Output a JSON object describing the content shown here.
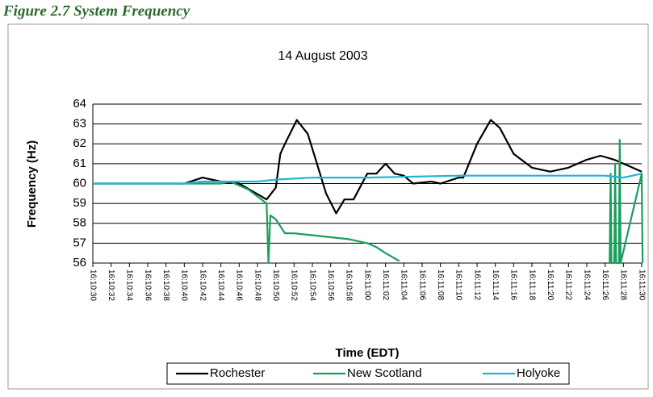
{
  "figure_caption": "Figure 2.7 System Frequency",
  "chart_data": {
    "type": "line",
    "title": "14 August 2003",
    "x_label": "Time (EDT)",
    "y_label": "Frequency (Hz)",
    "xlim": [
      58230,
      58290
    ],
    "xticks": [
      {
        "value": 58230,
        "label": "16:10:30"
      },
      {
        "value": 58232,
        "label": "16:10:32"
      },
      {
        "value": 58234,
        "label": "16:10:34"
      },
      {
        "value": 58236,
        "label": "16:10:36"
      },
      {
        "value": 58238,
        "label": "16:10:38"
      },
      {
        "value": 58240,
        "label": "16:10:40"
      },
      {
        "value": 58242,
        "label": "16:10:42"
      },
      {
        "value": 58244,
        "label": "16:10:44"
      },
      {
        "value": 58246,
        "label": "16:10:46"
      },
      {
        "value": 58248,
        "label": "16:10:48"
      },
      {
        "value": 58250,
        "label": "16:10:50"
      },
      {
        "value": 58252,
        "label": "16:10:52"
      },
      {
        "value": 58254,
        "label": "16:10:54"
      },
      {
        "value": 58256,
        "label": "16:10:56"
      },
      {
        "value": 58258,
        "label": "16:10:58"
      },
      {
        "value": 58260,
        "label": "16:11:00"
      },
      {
        "value": 58262,
        "label": "16:11:02"
      },
      {
        "value": 58264,
        "label": "16:11:04"
      },
      {
        "value": 58266,
        "label": "16:11:06"
      },
      {
        "value": 58268,
        "label": "16:11:08"
      },
      {
        "value": 58270,
        "label": "16:11:10"
      },
      {
        "value": 58272,
        "label": "16:11:12"
      },
      {
        "value": 58274,
        "label": "16:11:14"
      },
      {
        "value": 58276,
        "label": "16:11:16"
      },
      {
        "value": 58278,
        "label": "16:11:18"
      },
      {
        "value": 58280,
        "label": "16:11:20"
      },
      {
        "value": 58282,
        "label": "16:11:22"
      },
      {
        "value": 58284,
        "label": "16:11:24"
      },
      {
        "value": 58286,
        "label": "16:11:26"
      },
      {
        "value": 58288,
        "label": "16:11:28"
      },
      {
        "value": 58290,
        "label": "16:11:30"
      }
    ],
    "ylim": [
      56,
      64
    ],
    "yticks": [
      56,
      57,
      58,
      59,
      60,
      61,
      62,
      63,
      64
    ],
    "grid": true,
    "legend": "bottom",
    "series": [
      {
        "name": "Rochester",
        "color": "#000000",
        "x": [
          58230,
          58240,
          58242,
          58244,
          58246,
          58247.5,
          58249,
          58250,
          58250.5,
          58251,
          58252.3,
          58253.5,
          58254.5,
          58255.5,
          58256.6,
          58257.5,
          58258.5,
          58260,
          58261,
          58262,
          58263,
          58264,
          58265,
          58267,
          58268,
          58270,
          58270.5,
          58272,
          58273.5,
          58274.5,
          58276,
          58278,
          58280,
          58282,
          58284,
          58285.5,
          58287,
          58288.5,
          58290
        ],
        "values": [
          60,
          60,
          60.3,
          60.1,
          60,
          59.6,
          59.2,
          59.8,
          61.5,
          62,
          63.2,
          62.5,
          61,
          59.5,
          58.5,
          59.2,
          59.2,
          60.5,
          60.5,
          61,
          60.5,
          60.4,
          60,
          60.1,
          60,
          60.3,
          60.3,
          62,
          63.2,
          62.8,
          61.5,
          60.8,
          60.6,
          60.8,
          61.2,
          61.4,
          61.2,
          60.9,
          60.6
        ]
      },
      {
        "name": "New Scotland",
        "color": "#1a9e5c",
        "x": [
          58230,
          58244,
          58245,
          58247,
          58249,
          58249.2,
          58249.4,
          58250,
          58251,
          58252,
          58254,
          58256,
          58258,
          58260,
          58261,
          58262,
          58263.5,
          58280,
          58286.5,
          58286.6,
          58286.7,
          58287,
          58287.1,
          58287.2,
          58287.5,
          58287.6,
          58287.7,
          58290,
          58290.1
        ],
        "values": [
          60,
          60,
          60.1,
          59.7,
          59,
          56,
          58.4,
          58.2,
          57.5,
          57.5,
          57.4,
          57.3,
          57.2,
          57,
          56.8,
          56.5,
          56.1,
          null,
          56,
          60.5,
          56,
          56,
          61,
          56,
          56,
          62.2,
          56,
          60.5,
          56
        ]
      },
      {
        "name": "Holyoke",
        "color": "#1fb8d0",
        "x": [
          58230,
          58240,
          58242,
          58248,
          58250,
          58254,
          58260,
          58270,
          58286,
          58288,
          58289,
          58290
        ],
        "values": [
          60,
          60,
          60.1,
          60.1,
          60.2,
          60.3,
          60.3,
          60.4,
          60.4,
          60.3,
          60.4,
          60.5
        ]
      }
    ]
  }
}
